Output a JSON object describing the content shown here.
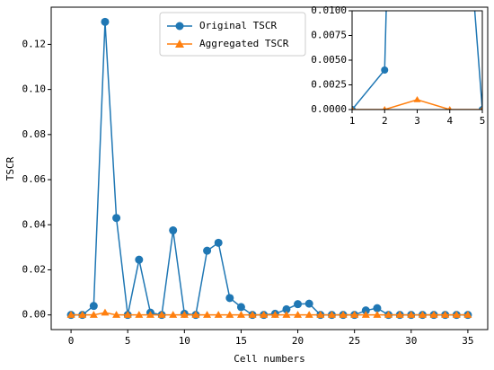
{
  "chart_data": {
    "type": "line",
    "xlabel": "Cell numbers",
    "ylabel": "TSCR",
    "x": [
      0,
      1,
      2,
      3,
      4,
      5,
      6,
      7,
      8,
      9,
      10,
      11,
      12,
      13,
      14,
      15,
      16,
      17,
      18,
      19,
      20,
      21,
      22,
      23,
      24,
      25,
      26,
      27,
      28,
      29,
      30,
      31,
      32,
      33,
      34,
      35
    ],
    "series": [
      {
        "name": "Original TSCR",
        "color": "#1f77b4",
        "marker": "circle",
        "values": [
          0,
          0,
          0.004,
          0.13,
          0.043,
          0,
          0.0245,
          0.001,
          0,
          0.0375,
          0.0005,
          0,
          0.0285,
          0.032,
          0.0075,
          0.0035,
          0,
          0,
          0.0005,
          0.0025,
          0.0048,
          0.005,
          0,
          0,
          0,
          0,
          0.002,
          0.003,
          0,
          0,
          0,
          0,
          0,
          0,
          0,
          0
        ]
      },
      {
        "name": "Aggregated TSCR",
        "color": "#ff7f0e",
        "marker": "triangle",
        "values": [
          0,
          0,
          0,
          0.001,
          0,
          0,
          0,
          0,
          0,
          0,
          0,
          0,
          0,
          0,
          0,
          0,
          0,
          0,
          0,
          0,
          0,
          0,
          0,
          0,
          0,
          0,
          0,
          0,
          0,
          0,
          0,
          0,
          0,
          0,
          0,
          0
        ]
      }
    ],
    "xlim": [
      -1.75,
      36.75
    ],
    "xticks": [
      0,
      5,
      10,
      15,
      20,
      25,
      30,
      35
    ],
    "ylim": [
      -0.0065,
      0.1365
    ],
    "yticks": [
      {
        "value": 0,
        "label": "0.00"
      },
      {
        "value": 0.02,
        "label": "0.02"
      },
      {
        "value": 0.04,
        "label": "0.04"
      },
      {
        "value": 0.06,
        "label": "0.06"
      },
      {
        "value": 0.08,
        "label": "0.08"
      },
      {
        "value": 0.1,
        "label": "0.10"
      },
      {
        "value": 0.12,
        "label": "0.12"
      }
    ],
    "legend": "upper center",
    "inset": {
      "xlim": [
        1,
        5
      ],
      "ylim": [
        0,
        0.01
      ],
      "xticks": [
        1,
        2,
        3,
        4,
        5
      ],
      "yticks": [
        {
          "value": 0,
          "label": "0.0000"
        },
        {
          "value": 0.0025,
          "label": "0.0025"
        },
        {
          "value": 0.005,
          "label": "0.0050"
        },
        {
          "value": 0.0075,
          "label": "0.0075"
        },
        {
          "value": 0.01,
          "label": "0.0100"
        }
      ]
    }
  }
}
